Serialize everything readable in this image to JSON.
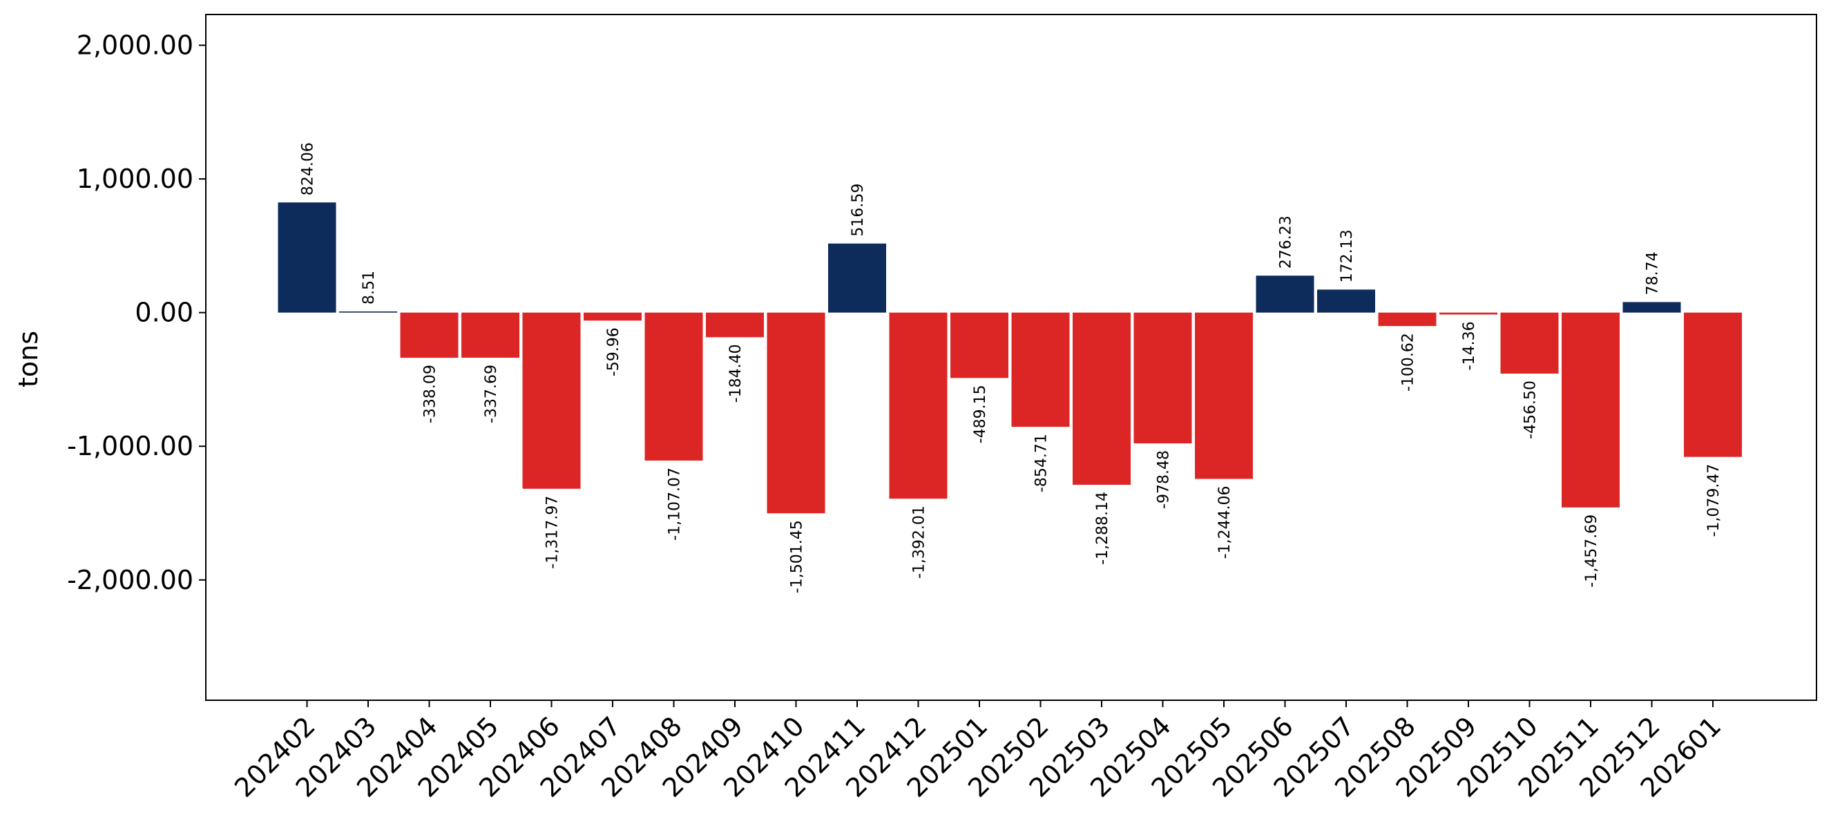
{
  "chart_data": {
    "type": "bar",
    "title": "",
    "xlabel": "",
    "ylabel": "tons",
    "ylim": [
      -2900,
      2230
    ],
    "yticks": [
      -2000,
      -1000,
      0,
      1000,
      2000
    ],
    "ytick_labels": [
      "-2,000.00",
      "-1,000.00",
      "0.00",
      "1,000.00",
      "2,000.00"
    ],
    "grid": false,
    "legend": "none",
    "colors": {
      "positive": "#0d2c5c",
      "negative": "#dc2626"
    },
    "categories": [
      "202402",
      "202403",
      "202404",
      "202405",
      "202406",
      "202407",
      "202408",
      "202409",
      "202410",
      "202411",
      "202412",
      "202501",
      "202502",
      "202503",
      "202504",
      "202505",
      "202506",
      "202507",
      "202508",
      "202509",
      "202510",
      "202511",
      "202512",
      "202601"
    ],
    "values": [
      824.06,
      8.51,
      -338.09,
      -337.69,
      -1317.97,
      -59.96,
      -1107.07,
      -184.4,
      -1501.45,
      516.59,
      -1392.01,
      -489.15,
      -854.71,
      -1288.14,
      -978.48,
      -1244.06,
      276.23,
      172.13,
      -100.62,
      -14.36,
      -456.5,
      -1457.69,
      78.74,
      -1079.47
    ],
    "value_labels": [
      "824.06",
      "8.51",
      "-338.09",
      "-337.69",
      "-1,317.97",
      "-59.96",
      "-1,107.07",
      "-184.40",
      "-1,501.45",
      "516.59",
      "-1,392.01",
      "-489.15",
      "-854.71",
      "-1,288.14",
      "-978.48",
      "-1,244.06",
      "276.23",
      "172.13",
      "-100.62",
      "-14.36",
      "-456.50",
      "-1,457.69",
      "78.74",
      "-1,079.47"
    ]
  }
}
